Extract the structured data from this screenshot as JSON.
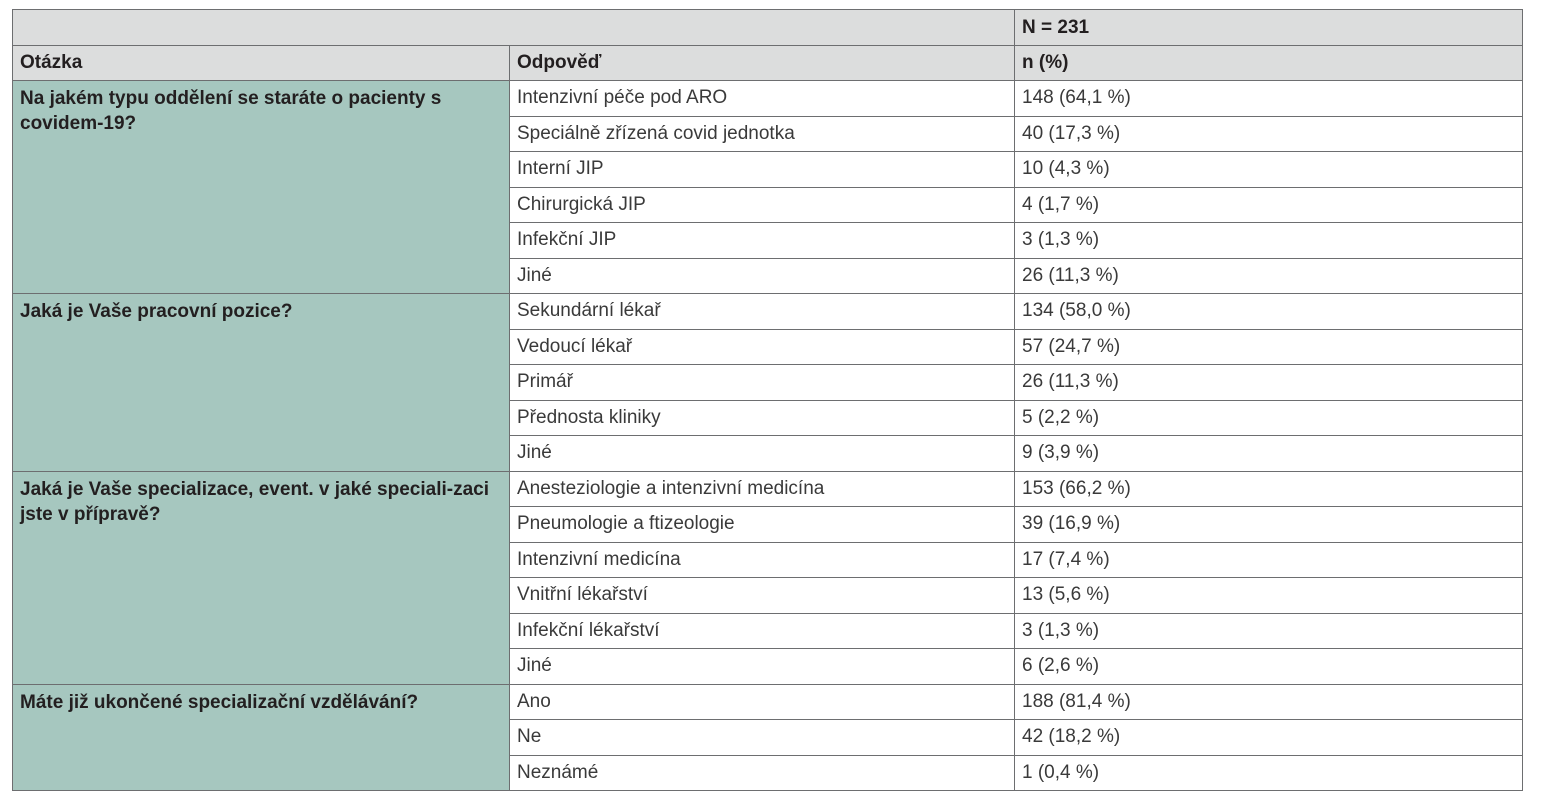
{
  "header": {
    "n_total": "N = 231",
    "col_question": "Otázka",
    "col_answer": "Odpověď",
    "col_value": "n (%)"
  },
  "groups": [
    {
      "question": "Na jakém typu oddělení se staráte o pacienty s covidem-19?",
      "rows": [
        {
          "answer": "Intenzivní péče pod ARO",
          "value": "148 (64,1 %)"
        },
        {
          "answer": "Speciálně zřízená covid jednotka",
          "value": "40 (17,3 %)"
        },
        {
          "answer": "Interní JIP",
          "value": "10 (4,3 %)"
        },
        {
          "answer": "Chirurgická JIP",
          "value": "4 (1,7 %)"
        },
        {
          "answer": "Infekční JIP",
          "value": "3 (1,3 %)"
        },
        {
          "answer": "Jiné",
          "value": "26 (11,3 %)"
        }
      ]
    },
    {
      "question": "Jaká je Vaše pracovní pozice?",
      "rows": [
        {
          "answer": "Sekundární lékař",
          "value": "134 (58,0 %)"
        },
        {
          "answer": "Vedoucí lékař",
          "value": "57 (24,7 %)"
        },
        {
          "answer": "Primář",
          "value": "26 (11,3 %)"
        },
        {
          "answer": "Přednosta kliniky",
          "value": "5 (2,2 %)"
        },
        {
          "answer": "Jiné",
          "value": "9 (3,9 %)"
        }
      ]
    },
    {
      "question": "Jaká je Vaše specializace, event. v jaké speciali-zaci jste v přípravě?",
      "rows": [
        {
          "answer": "Anesteziologie a intenzivní medicína",
          "value": "153 (66,2 %)"
        },
        {
          "answer": "Pneumologie a ftizeologie",
          "value": "39 (16,9 %)"
        },
        {
          "answer": "Intenzivní medicína",
          "value": "17 (7,4 %)"
        },
        {
          "answer": "Vnitřní lékařství",
          "value": "13 (5,6 %)"
        },
        {
          "answer": "Infekční lékařství",
          "value": "3 (1,3 %)"
        },
        {
          "answer": "Jiné",
          "value": "6 (2,6 %)"
        }
      ]
    },
    {
      "question": "Máte již ukončené specializační vzdělávání?",
      "rows": [
        {
          "answer": "Ano",
          "value": "188 (81,4 %)"
        },
        {
          "answer": "Ne",
          "value": "42 (18,2 %)"
        },
        {
          "answer": "Neznámé",
          "value": "1 (0,4 %)"
        }
      ]
    }
  ],
  "colors": {
    "question_bg": "#a6c7bf",
    "header_bg": "#dcdddd",
    "border": "#6d6e70"
  }
}
